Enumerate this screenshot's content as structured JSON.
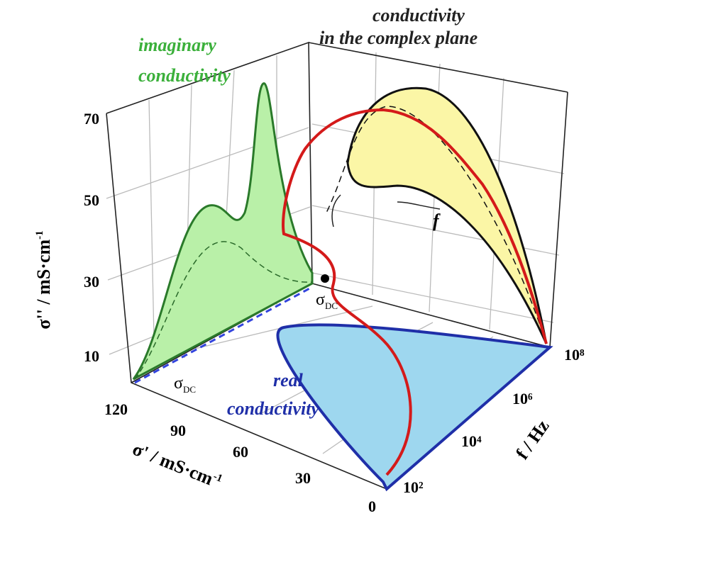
{
  "figure": {
    "imaginary_label": [
      "imaginary",
      "conductivity"
    ],
    "complex_label": [
      "conductivity",
      "in the complex plane"
    ],
    "real_label": [
      "real",
      "conductivity"
    ],
    "y_axis_label": {
      "text": "σ'' / mS·cm",
      "sup": "-1"
    },
    "x_axis_label": {
      "text": "σ' / mS·cm",
      "sup": "-1"
    },
    "f_axis_label": "f / Hz",
    "y_ticks": [
      "70",
      "50",
      "30",
      "10"
    ],
    "x_ticks": [
      "120",
      "90",
      "60",
      "30",
      "0"
    ],
    "f_ticks": [
      "10²",
      "10⁴",
      "10⁶",
      "10⁸"
    ],
    "sigma_dc": {
      "symbol": "σ",
      "subscript": "DC"
    },
    "f_arrow_label": "f"
  }
}
